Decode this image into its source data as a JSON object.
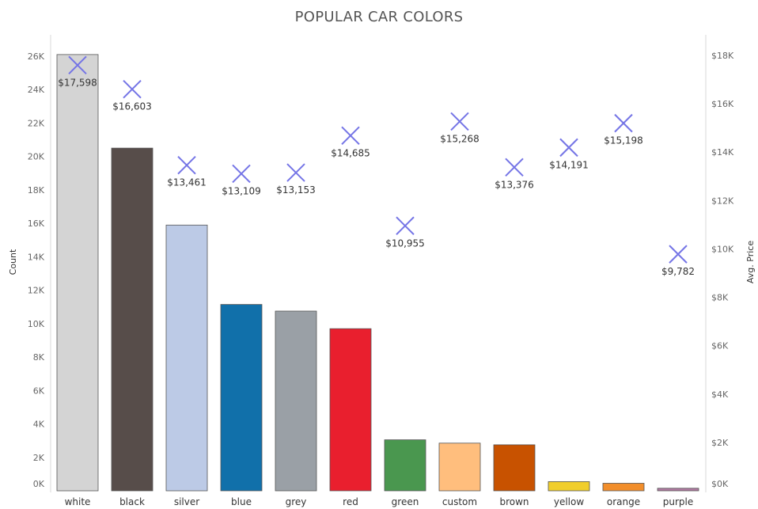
{
  "chart_data": {
    "type": "bar",
    "title": "POPULAR CAR COLORS",
    "categories": [
      "white",
      "black",
      "silver",
      "blue",
      "grey",
      "red",
      "green",
      "custom",
      "brown",
      "yellow",
      "orange",
      "purple"
    ],
    "series": [
      {
        "name": "Count",
        "type": "bar",
        "axis": "left",
        "values": [
          26100,
          20500,
          15900,
          11150,
          10750,
          9700,
          3050,
          2850,
          2750,
          550,
          450,
          150
        ],
        "colors": [
          "#d4d4d4",
          "#574d4a",
          "#bccae6",
          "#1170aa",
          "#9aa0a6",
          "#e91f2e",
          "#4a974f",
          "#ffbe7d",
          "#c85200",
          "#f1ce2c",
          "#f28e2b",
          "#b07aa1"
        ]
      },
      {
        "name": "Avg. Price",
        "type": "scatter",
        "marker": "x",
        "axis": "right",
        "color": "#7575e6",
        "values": [
          17598,
          16603,
          13461,
          13109,
          13153,
          14685,
          10955,
          15268,
          13376,
          14191,
          15198,
          9782
        ],
        "labels": [
          "$17,598",
          "$16,603",
          "$13,461",
          "$13,109",
          "$13,153",
          "$14,685",
          "$10,955",
          "$15,268",
          "$13,376",
          "$14,191",
          "$15,198",
          "$9,782"
        ]
      }
    ],
    "ylabel": "Count",
    "ylim": [
      0,
      27000
    ],
    "yticks": [
      0,
      2000,
      4000,
      6000,
      8000,
      10000,
      12000,
      14000,
      16000,
      18000,
      20000,
      22000,
      24000,
      26000
    ],
    "yticklabels": [
      "0K",
      "2K",
      "4K",
      "6K",
      "8K",
      "10K",
      "12K",
      "14K",
      "16K",
      "18K",
      "20K",
      "22K",
      "24K",
      "26K"
    ],
    "y2label": "Avg. Price",
    "y2lim": [
      0,
      18200
    ],
    "y2ticks": [
      0,
      2000,
      4000,
      6000,
      8000,
      10000,
      12000,
      14000,
      16000,
      18000
    ],
    "y2ticklabels": [
      "$0K",
      "$2K",
      "$4K",
      "$6K",
      "$8K",
      "$10K",
      "$12K",
      "$14K",
      "$16K",
      "$18K"
    ],
    "grid": false
  }
}
